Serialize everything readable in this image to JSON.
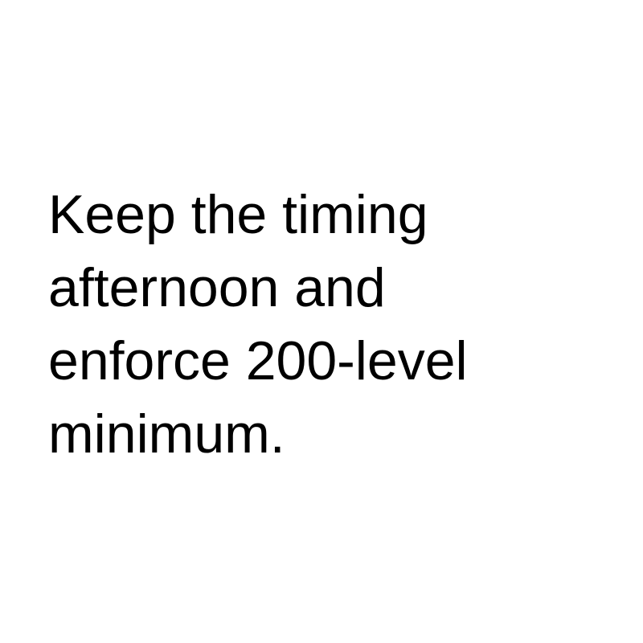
{
  "text_color": "#000000",
  "background_color": "#ffffff",
  "message": {
    "lines": [
      "Keep the timing",
      "afternoon and",
      "enforce 200-level",
      "minimum."
    ]
  }
}
